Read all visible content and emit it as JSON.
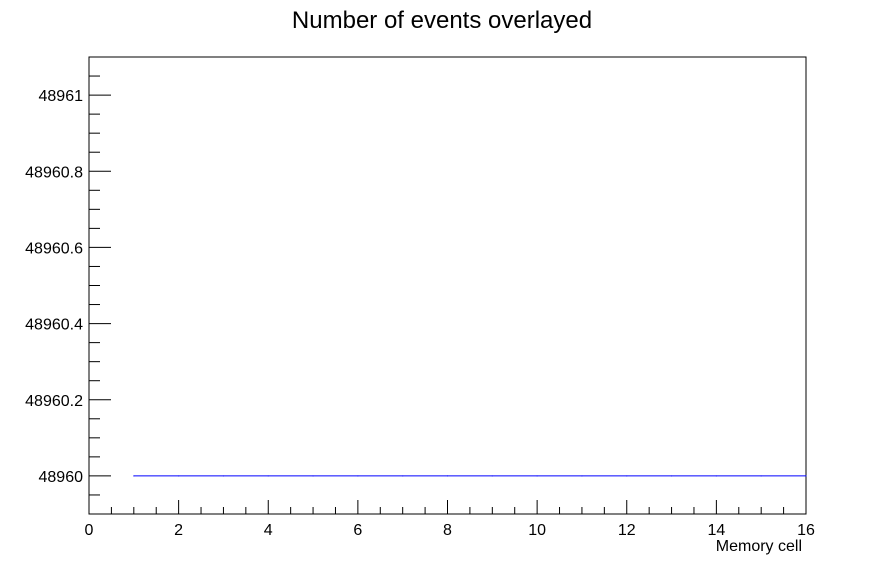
{
  "chart_data": {
    "type": "line",
    "title": "Number of events overlayed",
    "xlabel": "Memory cell",
    "ylabel": "",
    "xlim": [
      0,
      16
    ],
    "ylim": [
      48959.9,
      48961.1
    ],
    "x_ticks": [
      {
        "value": 0,
        "label": "0"
      },
      {
        "value": 2,
        "label": "2"
      },
      {
        "value": 4,
        "label": "4"
      },
      {
        "value": 6,
        "label": "6"
      },
      {
        "value": 8,
        "label": "8"
      },
      {
        "value": 10,
        "label": "10"
      },
      {
        "value": 12,
        "label": "12"
      },
      {
        "value": 14,
        "label": "14"
      },
      {
        "value": 16,
        "label": "16"
      }
    ],
    "y_ticks": [
      {
        "value": 48960,
        "label": "48960"
      },
      {
        "value": 48960.2,
        "label": "48960.2"
      },
      {
        "value": 48960.4,
        "label": "48960.4"
      },
      {
        "value": 48960.6,
        "label": "48960.6"
      },
      {
        "value": 48960.8,
        "label": "48960.8"
      },
      {
        "value": 48961,
        "label": "48961"
      }
    ],
    "x_minor_step": 0.5,
    "y_minor_step": 0.05,
    "grid": false,
    "series": [
      {
        "color": "#0000ff",
        "points": [
          [
            1,
            48960
          ],
          [
            2,
            48960
          ],
          [
            3,
            48960
          ],
          [
            4,
            48960
          ],
          [
            5,
            48960
          ],
          [
            6,
            48960
          ],
          [
            7,
            48960
          ],
          [
            8,
            48960
          ],
          [
            9,
            48960
          ],
          [
            10,
            48960
          ],
          [
            11,
            48960
          ],
          [
            12,
            48960
          ],
          [
            13,
            48960
          ],
          [
            14,
            48960
          ],
          [
            15,
            48960
          ],
          [
            16,
            48960
          ]
        ]
      }
    ]
  }
}
